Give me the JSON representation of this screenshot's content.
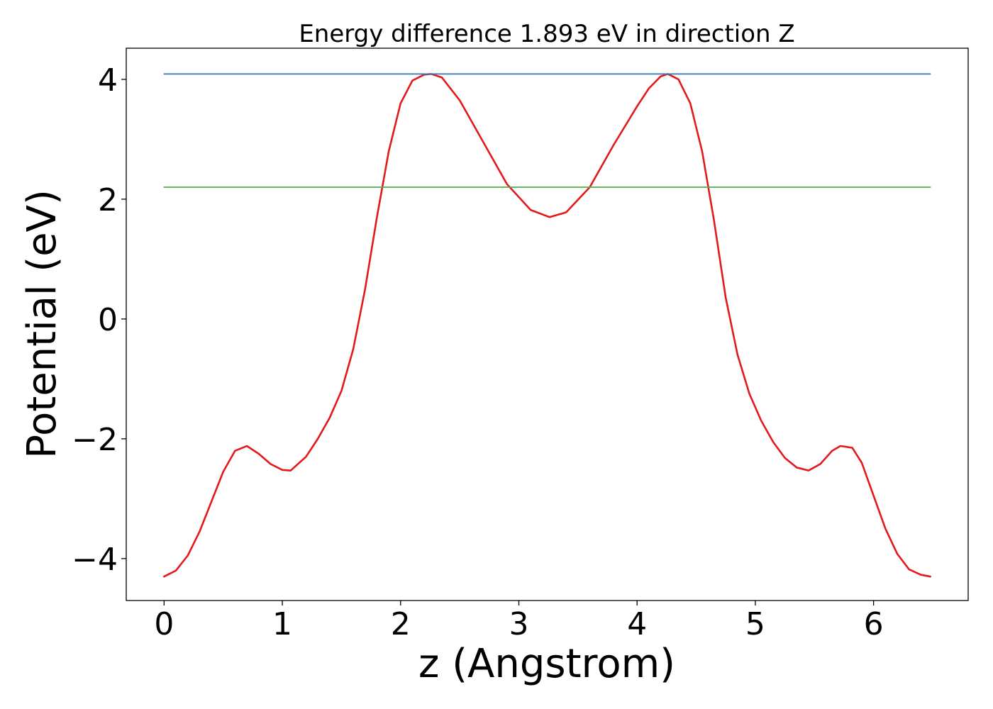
{
  "chart_data": {
    "type": "line",
    "title": "Energy difference 1.893 eV in direction Z",
    "xlabel": "z (Angstrom)",
    "ylabel": "Potential (eV)",
    "xlim": [
      -0.32,
      6.8
    ],
    "ylim": [
      -4.7,
      4.52
    ],
    "x_ticks": [
      0,
      1,
      2,
      3,
      4,
      5,
      6
    ],
    "x_tick_labels": [
      "0",
      "1",
      "2",
      "3",
      "4",
      "5",
      "6"
    ],
    "y_ticks": [
      -4,
      -2,
      0,
      2,
      4
    ],
    "y_tick_labels": [
      "−4",
      "−2",
      "0",
      "2",
      "4"
    ],
    "grid": false,
    "series": [
      {
        "name": "potential",
        "color": "#e31a1c",
        "x": [
          0.0,
          0.1,
          0.2,
          0.3,
          0.4,
          0.5,
          0.6,
          0.7,
          0.8,
          0.9,
          1.0,
          1.07,
          1.2,
          1.3,
          1.4,
          1.5,
          1.6,
          1.7,
          1.8,
          1.9,
          2.0,
          2.1,
          2.2,
          2.26,
          2.35,
          2.5,
          2.7,
          2.9,
          3.1,
          3.26,
          3.4,
          3.6,
          3.8,
          4.0,
          4.1,
          4.2,
          4.26,
          4.35,
          4.45,
          4.55,
          4.65,
          4.75,
          4.85,
          4.95,
          5.05,
          5.15,
          5.25,
          5.35,
          5.45,
          5.55,
          5.65,
          5.72,
          5.82,
          5.9,
          6.0,
          6.1,
          6.2,
          6.3,
          6.4,
          6.48
        ],
        "y": [
          -4.3,
          -4.2,
          -3.95,
          -3.55,
          -3.05,
          -2.55,
          -2.2,
          -2.12,
          -2.25,
          -2.42,
          -2.52,
          -2.53,
          -2.3,
          -2.0,
          -1.65,
          -1.2,
          -0.5,
          0.5,
          1.7,
          2.8,
          3.6,
          3.98,
          4.08,
          4.09,
          4.03,
          3.65,
          2.95,
          2.25,
          1.82,
          1.7,
          1.78,
          2.2,
          2.9,
          3.55,
          3.85,
          4.05,
          4.09,
          4.0,
          3.6,
          2.8,
          1.65,
          0.35,
          -0.6,
          -1.25,
          -1.7,
          -2.05,
          -2.32,
          -2.48,
          -2.53,
          -2.42,
          -2.2,
          -2.12,
          -2.15,
          -2.4,
          -2.95,
          -3.5,
          -3.92,
          -4.18,
          -4.27,
          -4.3
        ]
      },
      {
        "name": "max",
        "color": "#3a7dbe",
        "x": [
          0.0,
          6.48
        ],
        "y": [
          4.09,
          4.09
        ]
      },
      {
        "name": "reference",
        "color": "#4daf4a",
        "x": [
          0.0,
          6.48
        ],
        "y": [
          2.2,
          2.2
        ]
      }
    ]
  }
}
